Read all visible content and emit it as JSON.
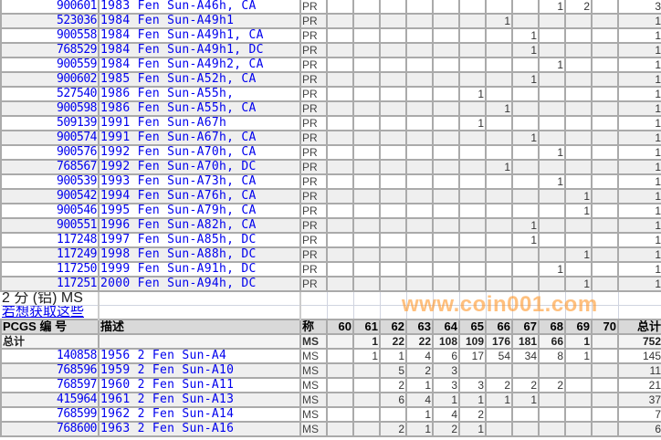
{
  "grades": [
    "60",
    "61",
    "62",
    "63",
    "64",
    "65",
    "66",
    "67",
    "68",
    "69",
    "70"
  ],
  "pr_rows": [
    {
      "id": "900601",
      "desc": "1983 Fen Sun-A46h, CA",
      "grade": "PR",
      "counts": {
        "68": 1,
        "69": 2
      },
      "total": 3
    },
    {
      "id": "523036",
      "desc": "1984 Fen Sun-A49h1",
      "grade": "PR",
      "counts": {
        "66": 1
      },
      "total": 1
    },
    {
      "id": "900558",
      "desc": "1984 Fen Sun-A49h1, CA",
      "grade": "PR",
      "counts": {
        "67": 1
      },
      "total": 1
    },
    {
      "id": "768529",
      "desc": "1984 Fen Sun-A49h1, DC",
      "grade": "PR",
      "counts": {
        "67": 1
      },
      "total": 1
    },
    {
      "id": "900559",
      "desc": "1984 Fen Sun-A49h2, CA",
      "grade": "PR",
      "counts": {
        "68": 1
      },
      "total": 1
    },
    {
      "id": "900602",
      "desc": "1985 Fen Sun-A52h, CA",
      "grade": "PR",
      "counts": {
        "67": 1
      },
      "total": 1
    },
    {
      "id": "527540",
      "desc": "1986 Fen Sun-A55h,",
      "grade": "PR",
      "counts": {
        "65": 1
      },
      "total": 1
    },
    {
      "id": "900598",
      "desc": "1986 Fen Sun-A55h, CA",
      "grade": "PR",
      "counts": {
        "66": 1
      },
      "total": 1
    },
    {
      "id": "509139",
      "desc": "1991 Fen Sun-A67h",
      "grade": "PR",
      "counts": {
        "65": 1
      },
      "total": 1
    },
    {
      "id": "900574",
      "desc": "1991 Fen Sun-A67h, CA",
      "grade": "PR",
      "counts": {
        "67": 1
      },
      "total": 1
    },
    {
      "id": "900576",
      "desc": "1992 Fen Sun-A70h, CA",
      "grade": "PR",
      "counts": {
        "68": 1
      },
      "total": 1
    },
    {
      "id": "768567",
      "desc": "1992 Fen Sun-A70h, DC",
      "grade": "PR",
      "counts": {
        "66": 1
      },
      "total": 1
    },
    {
      "id": "900539",
      "desc": "1993 Fen Sun-A73h, CA",
      "grade": "PR",
      "counts": {
        "68": 1
      },
      "total": 1
    },
    {
      "id": "900542",
      "desc": "1994 Fen Sun-A76h, CA",
      "grade": "PR",
      "counts": {
        "69": 1
      },
      "total": 1
    },
    {
      "id": "900546",
      "desc": "1995 Fen Sun-A79h, CA",
      "grade": "PR",
      "counts": {
        "69": 1
      },
      "total": 1
    },
    {
      "id": "900551",
      "desc": "1996 Fen Sun-A82h, CA",
      "grade": "PR",
      "counts": {
        "67": 1
      },
      "total": 1
    },
    {
      "id": "117248",
      "desc": "1997 Fen Sun-A85h, DC",
      "grade": "PR",
      "counts": {
        "67": 1
      },
      "total": 1
    },
    {
      "id": "117249",
      "desc": "1998 Fen Sun-A88h, DC",
      "grade": "PR",
      "counts": {
        "69": 1
      },
      "total": 1
    },
    {
      "id": "117250",
      "desc": "1999 Fen Sun-A91h, DC",
      "grade": "PR",
      "counts": {
        "68": 1
      },
      "total": 1
    },
    {
      "id": "117251",
      "desc": "2000 Fen Sun-A94h, DC",
      "grade": "PR",
      "counts": {
        "69": 1
      },
      "total": 1
    }
  ],
  "ms_section": {
    "title": "2 分 (铝) MS",
    "link": "若想获取这些",
    "header": {
      "id": "PCGS 编 号",
      "desc": "描述",
      "grade": "称",
      "total": "总计"
    },
    "summary": {
      "label": "总计",
      "grade": "MS",
      "counts": {
        "61": 1,
        "62": 22,
        "63": 22,
        "64": 108,
        "65": 109,
        "66": 176,
        "67": 181,
        "68": 66,
        "69": 1
      },
      "total": 752
    },
    "rows": [
      {
        "id": "140858",
        "desc": "1956 2 Fen Sun-A4",
        "grade": "MS",
        "counts": {
          "61": 1,
          "62": 1,
          "63": 4,
          "64": 6,
          "65": 17,
          "66": 54,
          "67": 34,
          "68": 8,
          "69": 1
        },
        "total": 145
      },
      {
        "id": "768596",
        "desc": "1959 2 Fen Sun-A10",
        "grade": "MS",
        "counts": {
          "62": 5,
          "63": 2,
          "64": 3
        },
        "total": 11
      },
      {
        "id": "768597",
        "desc": "1960 2 Fen Sun-A11",
        "grade": "MS",
        "counts": {
          "62": 2,
          "63": 1,
          "64": 3,
          "65": 3,
          "66": 2,
          "67": 2,
          "68": 2
        },
        "total": 21
      },
      {
        "id": "415964",
        "desc": "1961 2 Fen Sun-A13",
        "grade": "MS",
        "counts": {
          "62": 6,
          "63": 4,
          "64": 1,
          "65": 1,
          "66": 1,
          "67": 1
        },
        "total": 37
      },
      {
        "id": "768599",
        "desc": "1962 2 Fen Sun-A14",
        "grade": "MS",
        "counts": {
          "63": 1,
          "64": 4,
          "65": 2
        },
        "total": 7
      },
      {
        "id": "768600",
        "desc": "1963 2 Fen Sun-A16",
        "grade": "MS",
        "counts": {
          "62": 2,
          "63": 1,
          "64": 2,
          "65": 1
        },
        "total": 6
      }
    ]
  },
  "watermark": "www.coin001.com"
}
